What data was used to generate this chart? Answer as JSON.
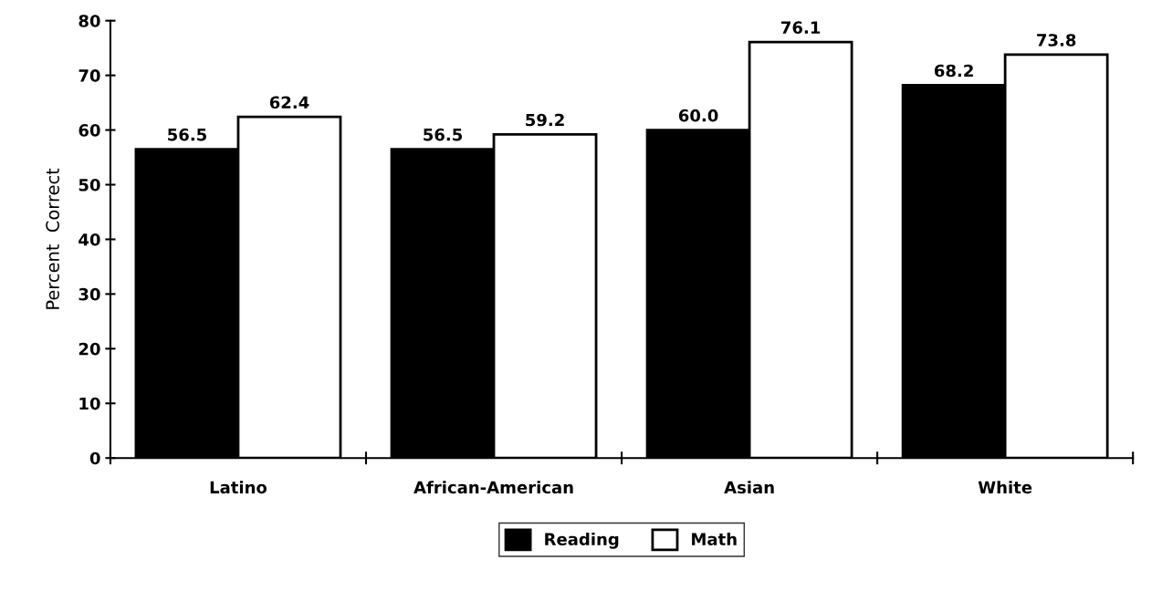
{
  "chart_data": {
    "type": "bar",
    "ylabel": "Percent  Correct",
    "categories": [
      "Latino",
      "African-American",
      "Asian",
      "White"
    ],
    "series": [
      {
        "name": "Reading",
        "color": "#000000",
        "values": [
          56.5,
          56.5,
          60.0,
          68.2
        ]
      },
      {
        "name": "Math",
        "color": "#ffffff",
        "values": [
          62.4,
          59.2,
          76.1,
          73.8
        ]
      }
    ],
    "value_labels": [
      [
        "56.5",
        "56.5",
        "60.0",
        "68.2"
      ],
      [
        "62.4",
        "59.2",
        "76.1",
        "73.8"
      ]
    ],
    "ylim": [
      0,
      80
    ],
    "yticks": [
      0,
      10,
      20,
      30,
      40,
      50,
      60,
      70,
      80
    ],
    "grid": false,
    "legend": "bottom"
  }
}
